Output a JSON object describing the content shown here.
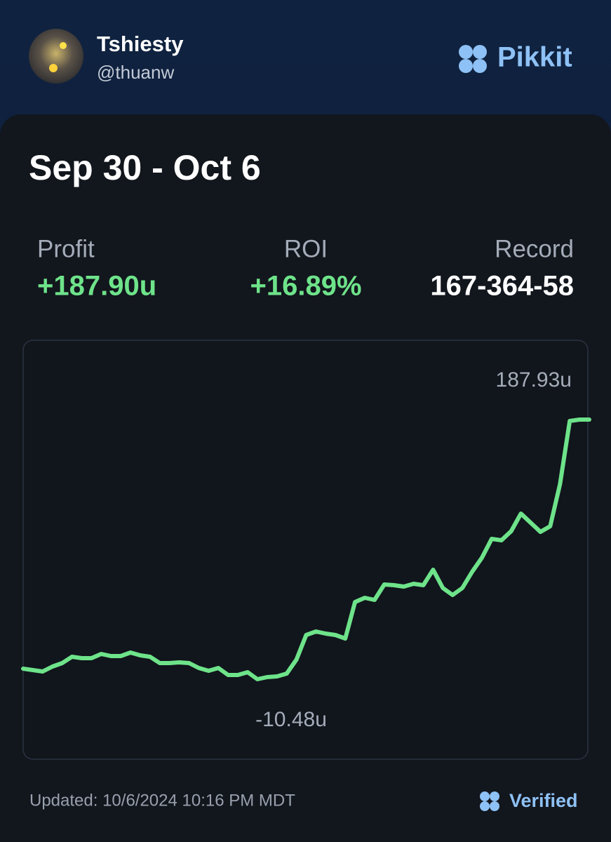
{
  "header": {
    "name": "Tshiesty",
    "handle": "@thuanw",
    "brand": "Pikkit"
  },
  "card": {
    "title": "Sep 30 - Oct 6",
    "stats": [
      {
        "label": "Profit",
        "value": "+187.90u"
      },
      {
        "label": "ROI",
        "value": "+16.89%"
      },
      {
        "label": "Record",
        "value": "167-364-58"
      }
    ]
  },
  "chart_data": {
    "type": "line",
    "color": "#6ee38a",
    "values": [
      -2.44,
      -3.51,
      -4.58,
      -0.83,
      1.85,
      6.68,
      5.61,
      5.61,
      8.82,
      7.21,
      7.21,
      9.9,
      7.75,
      6.68,
      1.85,
      1.85,
      2.39,
      1.85,
      -1.9,
      -4.05,
      -1.9,
      -7.26,
      -7.26,
      -5.12,
      -10.48,
      -8.87,
      -8.34,
      -6.19,
      4.53,
      23.3,
      25.98,
      24.37,
      23.3,
      20.62,
      48.5,
      51.72,
      50.11,
      61.91,
      61.37,
      60.3,
      62.44,
      61.37,
      73.17,
      59.23,
      53.86,
      59.23,
      71.56,
      82.28,
      96.76,
      95.69,
      102.66,
      116.06,
      109.09,
      102.12,
      106.41,
      138.58,
      186.84,
      187.93,
      187.93
    ],
    "max_label": {
      "value": 187.93,
      "label": "187.93u"
    },
    "min_label": {
      "value": -10.48,
      "label": "-10.48u"
    }
  },
  "footer": {
    "updated": "Updated: 10/6/2024 10:16 PM MDT",
    "verified": "Verified"
  }
}
